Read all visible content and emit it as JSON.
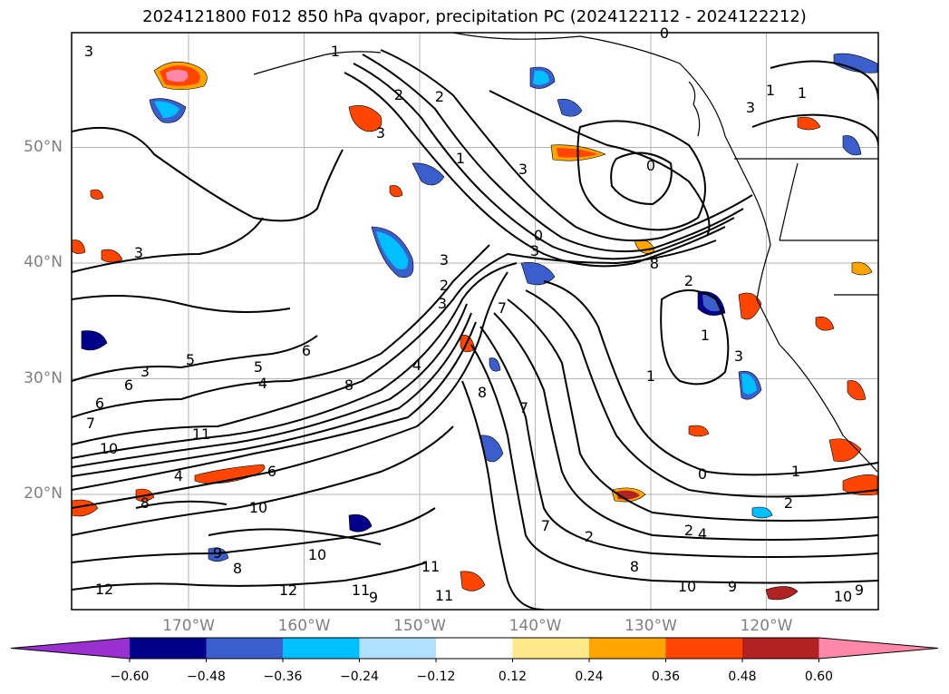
{
  "title": "2024121800 F012 850 hPa qvapor, precipitation PC (2024122112 - 2024122212)",
  "latitude_labels": [
    {
      "text": "50°N",
      "value": 50
    },
    {
      "text": "40°N",
      "value": 40
    },
    {
      "text": "30°N",
      "value": 30
    },
    {
      "text": "20°N",
      "value": 20
    }
  ],
  "longitude_labels": [
    {
      "text": "170°W",
      "value": -170
    },
    {
      "text": "160°W",
      "value": -160
    },
    {
      "text": "150°W",
      "value": -150
    },
    {
      "text": "140°W",
      "value": -140
    },
    {
      "text": "130°W",
      "value": -130
    },
    {
      "text": "120°W",
      "value": -120
    }
  ],
  "colorbar": {
    "ticks": [
      "−0.60",
      "−0.48",
      "−0.36",
      "−0.24",
      "−0.12",
      "0.12",
      "0.24",
      "0.36",
      "0.48",
      "0.60"
    ],
    "colors": [
      "#9b30d0",
      "#00008b",
      "#3a5fcd",
      "#00bfff",
      "#b0e0ff",
      "#ffffff",
      "#ffe88a",
      "#ffa500",
      "#ff4500",
      "#b22222",
      "#ff88aa"
    ]
  },
  "contour_labels": [
    "3",
    "1",
    "2",
    "2",
    "3",
    "1",
    "0",
    "1",
    "3",
    "1",
    "3",
    "0",
    "0",
    "3",
    "3",
    "2",
    "8",
    "2",
    "3",
    "6",
    "1",
    "5",
    "5",
    "4",
    "3",
    "6",
    "6",
    "8",
    "7",
    "10",
    "11",
    "4",
    "6",
    "8",
    "1",
    "10",
    "9",
    "7",
    "3",
    "2",
    "4",
    "0",
    "1",
    "2",
    "3",
    "4",
    "7",
    "7",
    "2",
    "10",
    "11",
    "8",
    "10",
    "9",
    "11",
    "11",
    "12",
    "12",
    "10",
    "9",
    "9",
    "8",
    "8"
  ]
}
